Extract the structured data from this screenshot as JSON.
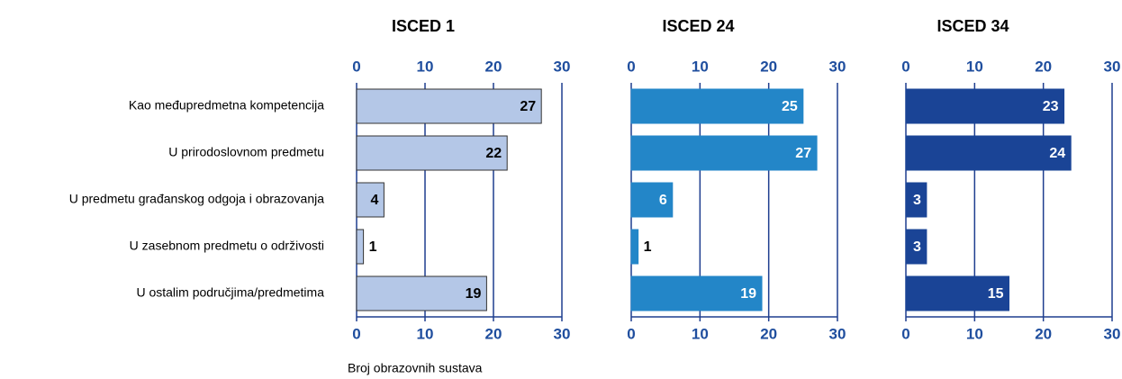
{
  "chart_data": {
    "type": "bar",
    "categories": [
      "Kao međupredmetna kompetencija",
      "U prirodoslovnom predmetu",
      "U predmetu građanskog odgoja i obrazovanja",
      "U zasebnom predmetu o održivosti",
      "U ostalim područjima/predmetima"
    ],
    "series": [
      {
        "name": "ISCED 1",
        "color": "#b4c7e7",
        "values": [
          27,
          22,
          4,
          1,
          19
        ]
      },
      {
        "name": "ISCED 24",
        "color": "#2386c8",
        "values": [
          25,
          27,
          6,
          1,
          19
        ]
      },
      {
        "name": "ISCED 34",
        "color": "#1a4496",
        "values": [
          23,
          24,
          3,
          3,
          15
        ]
      }
    ],
    "xlim": [
      0,
      30
    ],
    "xticks": [
      0,
      10,
      20,
      30
    ],
    "grid": true,
    "xlabel": "Broj obrazovnih sustava"
  }
}
